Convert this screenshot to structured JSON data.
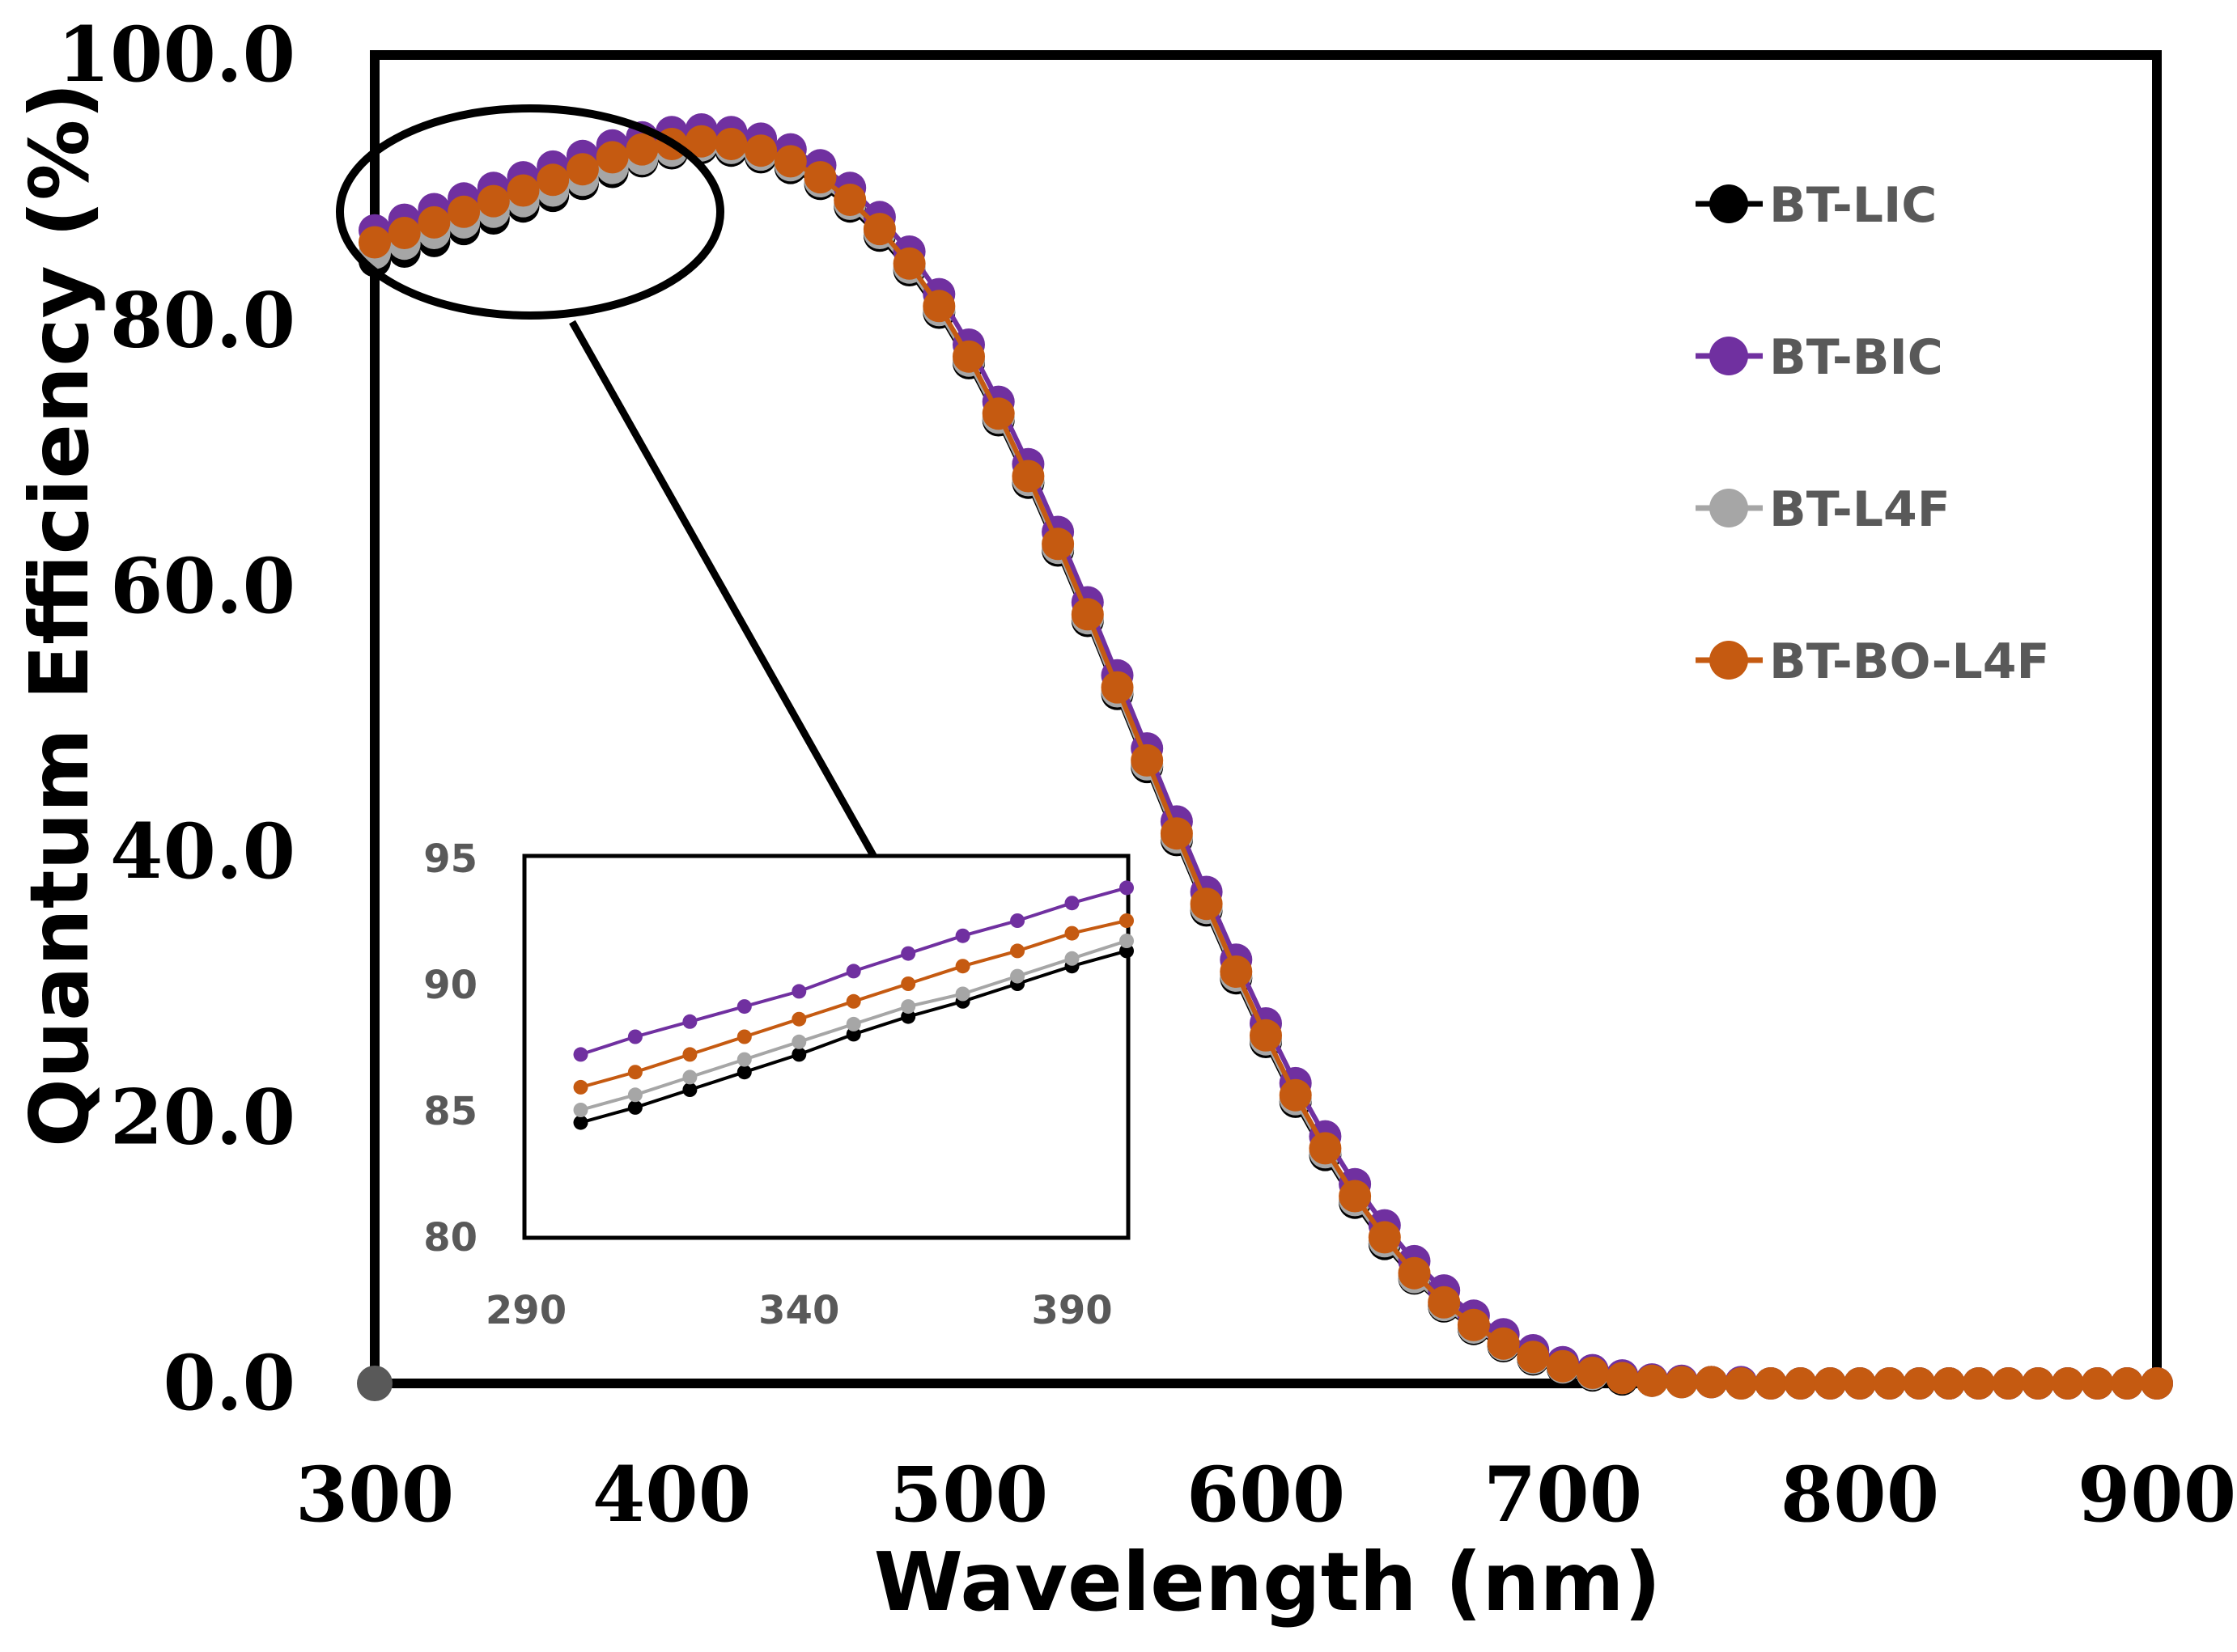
{
  "chart_data": [
    {
      "type": "line",
      "role": "main",
      "xlabel": "Wavelength (nm)",
      "ylabel": "Quantum Efficiency (%)",
      "xlim": [
        300,
        900
      ],
      "ylim": [
        0,
        100
      ],
      "xticks": [
        "300",
        "400",
        "500",
        "600",
        "700",
        "800",
        "900"
      ],
      "yticks": [
        "0.0",
        "20.0",
        "40.0",
        "60.0",
        "80.0",
        "100.0"
      ],
      "legend_position": "top-right",
      "x": [
        300,
        310,
        320,
        330,
        340,
        350,
        360,
        370,
        380,
        390,
        400,
        410,
        420,
        430,
        440,
        450,
        460,
        470,
        480,
        490,
        500,
        510,
        520,
        530,
        540,
        550,
        560,
        570,
        580,
        590,
        600,
        610,
        620,
        630,
        640,
        650,
        660,
        670,
        680,
        690,
        700,
        710,
        720,
        730,
        740,
        750,
        760,
        770,
        780,
        790,
        800,
        810,
        820,
        830,
        840,
        850,
        860,
        870,
        880,
        890,
        900
      ],
      "series": [
        {
          "name": "BT-LIC",
          "color": "#000000",
          "values": [
            84.5,
            85.2,
            86.0,
            86.9,
            87.7,
            88.6,
            89.4,
            90.3,
            91.2,
            92.0,
            92.6,
            93.0,
            92.8,
            92.3,
            91.5,
            90.3,
            88.6,
            86.4,
            83.8,
            80.6,
            76.8,
            72.5,
            67.8,
            62.7,
            57.4,
            51.9,
            46.4,
            40.9,
            35.6,
            30.5,
            25.7,
            21.2,
            17.2,
            13.6,
            10.5,
            7.9,
            5.8,
            4.1,
            2.8,
            1.8,
            1.1,
            0.6,
            0.3,
            0.2,
            0.1,
            0.1,
            0.0,
            0.0,
            0.0,
            0.0,
            0.0,
            0.0,
            0.0,
            0.0,
            0.0,
            0.0,
            0.0,
            0.0,
            0.0,
            0.0,
            0.0
          ]
        },
        {
          "name": "BT-BIC",
          "color": "#7030A0",
          "values": [
            86.8,
            87.6,
            88.4,
            89.2,
            90.0,
            90.8,
            91.6,
            92.4,
            93.2,
            93.8,
            94.2,
            94.4,
            94.2,
            93.7,
            92.9,
            91.7,
            90.0,
            87.8,
            85.2,
            82.0,
            78.2,
            73.9,
            69.2,
            64.1,
            58.8,
            53.3,
            47.8,
            42.3,
            37.0,
            31.9,
            27.1,
            22.6,
            18.6,
            15.0,
            11.9,
            9.2,
            7.0,
            5.1,
            3.7,
            2.5,
            1.6,
            1.0,
            0.6,
            0.3,
            0.2,
            0.1,
            0.1,
            0.0,
            0.0,
            0.0,
            0.0,
            0.0,
            0.0,
            0.0,
            0.0,
            0.0,
            0.0,
            0.0,
            0.0,
            0.0,
            0.0
          ]
        },
        {
          "name": "BT-L4F",
          "color": "#A6A6A6",
          "values": [
            85.1,
            85.8,
            86.6,
            87.4,
            88.2,
            89.0,
            89.8,
            90.6,
            91.5,
            92.2,
            92.8,
            93.2,
            93.0,
            92.5,
            91.7,
            90.5,
            88.8,
            86.6,
            84.0,
            80.8,
            77.0,
            72.7,
            68.0,
            62.9,
            57.6,
            52.1,
            46.6,
            41.1,
            35.8,
            30.7,
            25.9,
            21.4,
            17.4,
            13.8,
            10.7,
            8.0,
            5.9,
            4.2,
            2.9,
            1.9,
            1.2,
            0.7,
            0.4,
            0.2,
            0.1,
            0.1,
            0.0,
            0.0,
            0.0,
            0.0,
            0.0,
            0.0,
            0.0,
            0.0,
            0.0,
            0.0,
            0.0,
            0.0,
            0.0,
            0.0,
            0.0
          ]
        },
        {
          "name": "BT-BO-L4F",
          "color": "#C55A11",
          "values": [
            85.9,
            86.6,
            87.4,
            88.2,
            89.0,
            89.8,
            90.6,
            91.4,
            92.3,
            92.9,
            93.3,
            93.5,
            93.3,
            92.8,
            92.0,
            90.8,
            89.1,
            86.9,
            84.3,
            81.1,
            77.3,
            73.0,
            68.3,
            63.2,
            57.9,
            52.4,
            46.9,
            41.4,
            36.1,
            31.0,
            26.2,
            21.7,
            17.7,
            14.1,
            11.0,
            8.3,
            6.1,
            4.4,
            3.0,
            2.0,
            1.3,
            0.8,
            0.4,
            0.2,
            0.1,
            0.1,
            0.0,
            0.0,
            0.0,
            0.0,
            0.0,
            0.0,
            0.0,
            0.0,
            0.0,
            0.0,
            0.0,
            0.0,
            0.0,
            0.0,
            0.0
          ]
        }
      ]
    },
    {
      "type": "line",
      "role": "inset",
      "xlim": [
        290,
        400
      ],
      "ylim": [
        80,
        95
      ],
      "xticks": [
        "290",
        "340",
        "390"
      ],
      "yticks": [
        "80",
        "85",
        "90",
        "95"
      ],
      "x": [
        300,
        310,
        320,
        330,
        340,
        350,
        360,
        370,
        380,
        390,
        400
      ],
      "series": [
        {
          "name": "BT-LIC",
          "color": "#000000",
          "values": [
            84.5,
            85.1,
            85.8,
            86.5,
            87.2,
            88.0,
            88.7,
            89.3,
            90.0,
            90.7,
            91.3
          ]
        },
        {
          "name": "BT-BIC",
          "color": "#7030A0",
          "values": [
            87.2,
            87.9,
            88.5,
            89.1,
            89.7,
            90.5,
            91.2,
            91.9,
            92.5,
            93.2,
            93.8
          ]
        },
        {
          "name": "BT-L4F",
          "color": "#A6A6A6",
          "values": [
            85.0,
            85.6,
            86.3,
            87.0,
            87.7,
            88.4,
            89.1,
            89.6,
            90.3,
            91.0,
            91.7
          ]
        },
        {
          "name": "BT-BO-L4F",
          "color": "#C55A11",
          "values": [
            85.9,
            86.5,
            87.2,
            87.9,
            88.6,
            89.3,
            90.0,
            90.7,
            91.3,
            92.0,
            92.5
          ]
        }
      ]
    }
  ]
}
